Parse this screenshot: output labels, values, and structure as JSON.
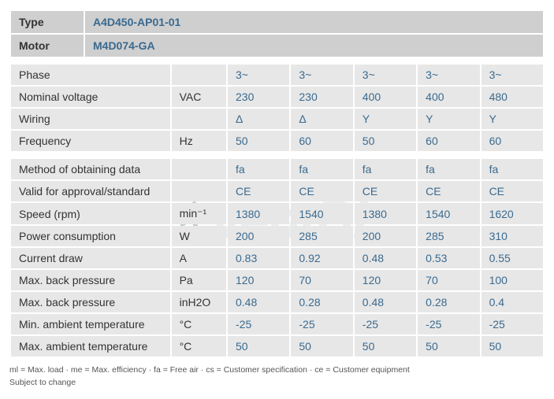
{
  "header": {
    "rows": [
      {
        "label": "Type",
        "value": "A4D450-AP01-01"
      },
      {
        "label": "Motor",
        "value": "M4D074-GA"
      }
    ]
  },
  "section1": {
    "columns": [
      "param",
      "unit",
      "v1",
      "v2",
      "v3",
      "v4",
      "v5"
    ],
    "rows": [
      {
        "param": "Phase",
        "unit": "",
        "v1": "3~",
        "v2": "3~",
        "v3": "3~",
        "v4": "3~",
        "v5": "3~"
      },
      {
        "param": "Nominal voltage",
        "unit": "VAC",
        "v1": "230",
        "v2": "230",
        "v3": "400",
        "v4": "400",
        "v5": "480"
      },
      {
        "param": "Wiring",
        "unit": "",
        "v1": "Δ",
        "v2": "Δ",
        "v3": "Y",
        "v4": "Y",
        "v5": "Y"
      },
      {
        "param": "Frequency",
        "unit": "Hz",
        "v1": "50",
        "v2": "60",
        "v3": "50",
        "v4": "60",
        "v5": "60"
      }
    ]
  },
  "section2": {
    "rows": [
      {
        "param": "Method of obtaining data",
        "unit": "",
        "v1": "fa",
        "v2": "fa",
        "v3": "fa",
        "v4": "fa",
        "v5": "fa"
      },
      {
        "param": "Valid for approval/standard",
        "unit": "",
        "v1": "CE",
        "v2": "CE",
        "v3": "CE",
        "v4": "CE",
        "v5": "CE"
      },
      {
        "param": "Speed (rpm)",
        "unit": "min⁻¹",
        "v1": "1380",
        "v2": "1540",
        "v3": "1380",
        "v4": "1540",
        "v5": "1620"
      },
      {
        "param": "Power consumption",
        "unit": "W",
        "v1": "200",
        "v2": "285",
        "v3": "200",
        "v4": "285",
        "v5": "310"
      },
      {
        "param": "Current draw",
        "unit": "A",
        "v1": "0.83",
        "v2": "0.92",
        "v3": "0.48",
        "v4": "0.53",
        "v5": "0.55"
      },
      {
        "param": "Max. back pressure",
        "unit": "Pa",
        "v1": "120",
        "v2": "70",
        "v3": "120",
        "v4": "70",
        "v5": "100"
      },
      {
        "param": "Max. back pressure",
        "unit": "inH2O",
        "v1": "0.48",
        "v2": "0.28",
        "v3": "0.48",
        "v4": "0.28",
        "v5": "0.4"
      },
      {
        "param": "Min. ambient temperature",
        "unit": "°C",
        "v1": "-25",
        "v2": "-25",
        "v3": "-25",
        "v4": "-25",
        "v5": "-25"
      },
      {
        "param": "Max. ambient temperature",
        "unit": "°C",
        "v1": "50",
        "v2": "50",
        "v3": "50",
        "v4": "50",
        "v5": "50"
      }
    ]
  },
  "footer": {
    "line1": "ml = Max. load · me = Max. efficiency · fa = Free air · cs = Customer specification · ce = Customer equipment",
    "line2": "Subject to change"
  },
  "styling": {
    "header_bg": "#cfcfcf",
    "data_bg": "#e7e7e7",
    "text_color": "#333333",
    "value_color": "#3a6a8f",
    "footer_color": "#555555",
    "font_family": "Arial",
    "header_font_size": 14,
    "data_font_size": 14,
    "footer_font_size": 10.5,
    "col_widths": {
      "param": 180,
      "unit": 62,
      "val": 70
    }
  },
  "watermark": {
    "text": "ventBL",
    "color": "rgba(180,195,200,0.28)"
  }
}
